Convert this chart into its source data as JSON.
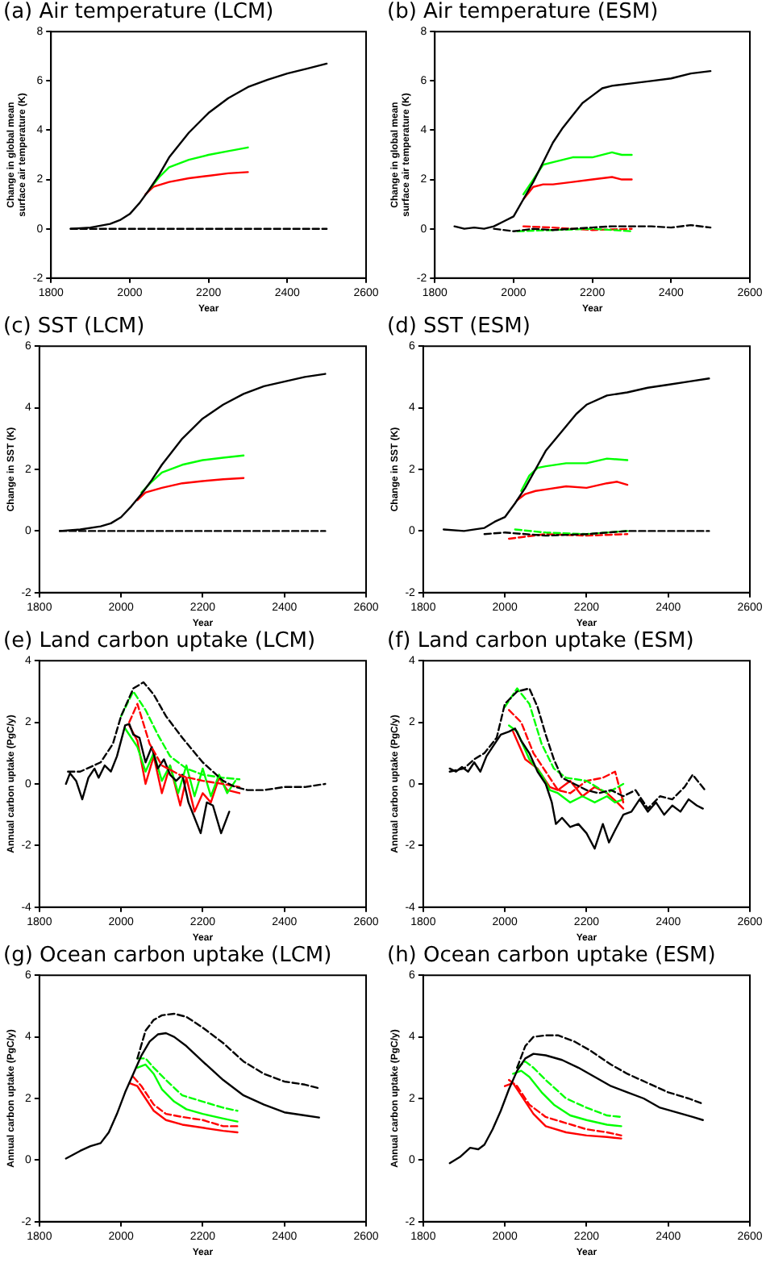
{
  "chart_data": [
    {
      "type": "line",
      "title": "(a) Air temperature (LCM)",
      "xlabel": "Year",
      "ylabel": "Change in global mean surface air temperature (K)",
      "xlim": [
        1800,
        2600
      ],
      "xticks": [
        1800,
        2000,
        2200,
        2400,
        2600
      ],
      "ylim": [
        -2,
        8
      ],
      "yticks": [
        -2,
        0,
        2,
        4,
        6,
        8
      ],
      "grid": false,
      "legend": false,
      "marker": "none",
      "series": [
        {
          "color": "#000000",
          "line_style": "dashed",
          "x": [
            1850,
            2500
          ],
          "values": [
            0,
            0
          ]
        },
        {
          "color": "#000000",
          "line_style": "solid",
          "x": [
            1850,
            1900,
            1950,
            1975,
            2000,
            2025,
            2050,
            2075,
            2100,
            2150,
            2200,
            2250,
            2300,
            2350,
            2400,
            2450,
            2500
          ],
          "values": [
            0,
            0.05,
            0.2,
            0.35,
            0.6,
            1.05,
            1.6,
            2.2,
            2.9,
            3.9,
            4.7,
            5.3,
            5.75,
            6.05,
            6.3,
            6.5,
            6.7
          ]
        },
        {
          "color": "#00ff00",
          "line_style": "solid",
          "x": [
            2050,
            2075,
            2100,
            2150,
            2200,
            2250,
            2300
          ],
          "values": [
            1.6,
            2.1,
            2.5,
            2.8,
            3.0,
            3.15,
            3.3
          ]
        },
        {
          "color": "#ff0000",
          "line_style": "solid",
          "x": [
            2040,
            2060,
            2100,
            2150,
            2200,
            2250,
            2300
          ],
          "values": [
            1.4,
            1.7,
            1.9,
            2.05,
            2.15,
            2.25,
            2.3
          ]
        }
      ]
    },
    {
      "type": "line",
      "title": "(b) Air temperature (ESM)",
      "xlabel": "Year",
      "ylabel": "Change in global mean surface air temperature (K)",
      "xlim": [
        1800,
        2600
      ],
      "xticks": [
        1800,
        2000,
        2200,
        2400,
        2600
      ],
      "ylim": [
        -2,
        8
      ],
      "yticks": [
        -2,
        0,
        2,
        4,
        6,
        8
      ],
      "grid": false,
      "legend": false,
      "marker": "none",
      "series": [
        {
          "color": "#000000",
          "line_style": "dashed",
          "x": [
            1950,
            2000,
            2050,
            2100,
            2150,
            2200,
            2250,
            2300,
            2350,
            2400,
            2450,
            2500
          ],
          "values": [
            0,
            -0.1,
            0,
            -0.05,
            0,
            0.05,
            0.1,
            0.1,
            0.1,
            0.05,
            0.15,
            0.05
          ]
        },
        {
          "color": "#00ff00",
          "line_style": "dashed",
          "x": [
            2010,
            2100,
            2200,
            2300
          ],
          "values": [
            -0.1,
            -0.05,
            0,
            -0.1
          ]
        },
        {
          "color": "#ff0000",
          "line_style": "dashed",
          "x": [
            2025,
            2100,
            2200,
            2300
          ],
          "values": [
            0.1,
            0.05,
            -0.05,
            0
          ]
        },
        {
          "color": "#000000",
          "line_style": "solid",
          "x": [
            1850,
            1875,
            1900,
            1925,
            1950,
            1975,
            2000,
            2025,
            2050,
            2075,
            2100,
            2125,
            2150,
            2175,
            2200,
            2225,
            2250,
            2300,
            2350,
            2400,
            2450,
            2500
          ],
          "values": [
            0.1,
            0,
            0.05,
            0,
            0.1,
            0.3,
            0.5,
            1.2,
            1.9,
            2.7,
            3.5,
            4.1,
            4.6,
            5.1,
            5.4,
            5.7,
            5.8,
            5.9,
            6.0,
            6.1,
            6.3,
            6.4
          ]
        },
        {
          "color": "#00ff00",
          "line_style": "solid",
          "x": [
            2025,
            2050,
            2075,
            2100,
            2125,
            2150,
            2200,
            2250,
            2275,
            2300
          ],
          "values": [
            1.4,
            2.0,
            2.6,
            2.7,
            2.8,
            2.9,
            2.9,
            3.1,
            3.0,
            3.0
          ]
        },
        {
          "color": "#ff0000",
          "line_style": "solid",
          "x": [
            2025,
            2050,
            2075,
            2100,
            2150,
            2200,
            2250,
            2275,
            2300
          ],
          "values": [
            1.2,
            1.7,
            1.8,
            1.8,
            1.9,
            2.0,
            2.1,
            2.0,
            2.0
          ]
        }
      ]
    },
    {
      "type": "line",
      "title": "(c) SST (LCM)",
      "xlabel": "Year",
      "ylabel": "Change in SST (K)",
      "xlim": [
        1800,
        2600
      ],
      "xticks": [
        1800,
        2000,
        2200,
        2400,
        2600
      ],
      "ylim": [
        -2,
        6
      ],
      "yticks": [
        -2,
        0,
        2,
        4,
        6
      ],
      "grid": false,
      "legend": false,
      "marker": "none",
      "series": [
        {
          "color": "#000000",
          "line_style": "dashed",
          "x": [
            1850,
            2500
          ],
          "values": [
            0,
            0
          ]
        },
        {
          "color": "#000000",
          "line_style": "solid",
          "x": [
            1850,
            1900,
            1950,
            1975,
            2000,
            2025,
            2050,
            2075,
            2100,
            2150,
            2200,
            2250,
            2300,
            2350,
            2400,
            2450,
            2500
          ],
          "values": [
            0,
            0.05,
            0.15,
            0.25,
            0.45,
            0.8,
            1.2,
            1.65,
            2.15,
            3.0,
            3.65,
            4.1,
            4.45,
            4.7,
            4.85,
            5.0,
            5.1
          ]
        },
        {
          "color": "#00ff00",
          "line_style": "solid",
          "x": [
            2050,
            2075,
            2100,
            2150,
            2200,
            2250,
            2300
          ],
          "values": [
            1.25,
            1.6,
            1.9,
            2.15,
            2.3,
            2.38,
            2.45
          ]
        },
        {
          "color": "#ff0000",
          "line_style": "solid",
          "x": [
            2040,
            2060,
            2100,
            2150,
            2200,
            2250,
            2300
          ],
          "values": [
            1.0,
            1.25,
            1.4,
            1.55,
            1.62,
            1.68,
            1.72
          ]
        }
      ]
    },
    {
      "type": "line",
      "title": "(d) SST (ESM)",
      "xlabel": "Year",
      "ylabel": "Change in SST (K)",
      "xlim": [
        1800,
        2600
      ],
      "xticks": [
        1800,
        2000,
        2200,
        2400,
        2600
      ],
      "ylim": [
        -2,
        6
      ],
      "yticks": [
        -2,
        0,
        2,
        4,
        6
      ],
      "grid": false,
      "legend": false,
      "marker": "none",
      "series": [
        {
          "color": "#000000",
          "line_style": "dashed",
          "x": [
            1950,
            2000,
            2100,
            2200,
            2300,
            2400,
            2500
          ],
          "values": [
            -0.1,
            -0.05,
            -0.15,
            -0.1,
            0,
            0,
            0
          ]
        },
        {
          "color": "#00ff00",
          "line_style": "dashed",
          "x": [
            2025,
            2100,
            2200,
            2300
          ],
          "values": [
            0.05,
            -0.05,
            -0.1,
            0
          ]
        },
        {
          "color": "#ff0000",
          "line_style": "dashed",
          "x": [
            2010,
            2100,
            2200,
            2300
          ],
          "values": [
            -0.25,
            -0.1,
            -0.15,
            -0.1
          ]
        },
        {
          "color": "#000000",
          "line_style": "solid",
          "x": [
            1850,
            1900,
            1950,
            1975,
            2000,
            2025,
            2050,
            2075,
            2100,
            2125,
            2150,
            2175,
            2200,
            2250,
            2300,
            2350,
            2400,
            2450,
            2500
          ],
          "values": [
            0.05,
            0,
            0.1,
            0.3,
            0.45,
            0.9,
            1.4,
            2.0,
            2.6,
            3.0,
            3.4,
            3.8,
            4.1,
            4.4,
            4.5,
            4.65,
            4.75,
            4.85,
            4.95
          ]
        },
        {
          "color": "#00ff00",
          "line_style": "solid",
          "x": [
            2040,
            2060,
            2080,
            2100,
            2150,
            2200,
            2250,
            2300
          ],
          "values": [
            1.3,
            1.8,
            2.05,
            2.1,
            2.2,
            2.2,
            2.35,
            2.3
          ]
        },
        {
          "color": "#ff0000",
          "line_style": "solid",
          "x": [
            2030,
            2050,
            2075,
            2100,
            2150,
            2200,
            2250,
            2275,
            2300
          ],
          "values": [
            1.0,
            1.2,
            1.3,
            1.35,
            1.45,
            1.4,
            1.55,
            1.6,
            1.5
          ]
        }
      ]
    },
    {
      "type": "line",
      "title": "(e) Land carbon uptake (LCM)",
      "xlabel": "Year",
      "ylabel": "Annual carbon uptake (PgC/y)",
      "xlim": [
        1800,
        2600
      ],
      "xticks": [
        1800,
        2000,
        2200,
        2400,
        2600
      ],
      "ylim": [
        -4,
        4
      ],
      "yticks": [
        -4,
        -2,
        0,
        2,
        4
      ],
      "grid": false,
      "legend": false,
      "marker": "none",
      "series": [
        {
          "color": "#000000",
          "line_style": "dashed",
          "x": [
            1870,
            1900,
            1950,
            1980,
            2000,
            2030,
            2055,
            2080,
            2110,
            2150,
            2200,
            2250,
            2280,
            2310,
            2350,
            2400,
            2450,
            2500
          ],
          "values": [
            0.4,
            0.4,
            0.7,
            1.3,
            2.2,
            3.1,
            3.3,
            2.9,
            2.2,
            1.5,
            0.7,
            0.1,
            -0.1,
            -0.2,
            -0.2,
            -0.1,
            -0.1,
            0
          ]
        },
        {
          "color": "#00ff00",
          "line_style": "dashed",
          "x": [
            2000,
            2030,
            2060,
            2090,
            2120,
            2160,
            2200,
            2250,
            2290
          ],
          "values": [
            2.2,
            3.0,
            2.4,
            1.6,
            0.9,
            0.5,
            0.3,
            0.2,
            0.15
          ]
        },
        {
          "color": "#ff0000",
          "line_style": "dashed",
          "x": [
            2020,
            2040,
            2070,
            2100,
            2150,
            2200,
            2250,
            2290
          ],
          "values": [
            2.0,
            2.6,
            1.3,
            0.6,
            0.25,
            0.1,
            0,
            -0.1
          ]
        },
        {
          "color": "#000000",
          "line_style": "solid",
          "x": [
            1865,
            1875,
            1890,
            1905,
            1920,
            1935,
            1945,
            1960,
            1975,
            1990,
            2010,
            2020,
            2030,
            2045,
            2060,
            2075,
            2090,
            2105,
            2120,
            2135,
            2150,
            2165,
            2180,
            2195,
            2210,
            2225,
            2245,
            2265
          ],
          "values": [
            0,
            0.35,
            0.1,
            -0.5,
            0.2,
            0.5,
            0.2,
            0.6,
            0.4,
            0.9,
            1.9,
            1.95,
            1.6,
            1.5,
            0.7,
            1.2,
            0.5,
            0.8,
            0.3,
            0.1,
            0.3,
            -0.6,
            -1.1,
            -1.6,
            -0.6,
            -0.7,
            -1.6,
            -0.9
          ]
        },
        {
          "color": "#00ff00",
          "line_style": "solid",
          "x": [
            2010,
            2040,
            2060,
            2080,
            2100,
            2120,
            2140,
            2160,
            2180,
            2200,
            2220,
            2240,
            2260,
            2280
          ],
          "values": [
            1.8,
            1.2,
            0.4,
            1.0,
            0.1,
            0.6,
            -0.3,
            0.6,
            -0.4,
            0.5,
            -0.4,
            0.3,
            -0.3,
            0.1
          ]
        },
        {
          "color": "#ff0000",
          "line_style": "solid",
          "x": [
            2020,
            2040,
            2060,
            2080,
            2100,
            2120,
            2145,
            2160,
            2180,
            2200,
            2220,
            2240,
            2260,
            2290
          ],
          "values": [
            1.9,
            1.4,
            0,
            0.9,
            -0.3,
            0.6,
            -0.7,
            0.2,
            -0.9,
            -0.3,
            -0.6,
            0.2,
            -0.2,
            -0.3
          ]
        }
      ]
    },
    {
      "type": "line",
      "title": "(f) Land carbon uptake (ESM)",
      "xlabel": "Year",
      "ylabel": "Annual carbon uptake (PgC/y)",
      "xlim": [
        1800,
        2600
      ],
      "xticks": [
        1800,
        2000,
        2200,
        2400,
        2600
      ],
      "ylim": [
        -4,
        4
      ],
      "yticks": [
        -4,
        -2,
        0,
        2,
        4
      ],
      "grid": false,
      "legend": false,
      "marker": "none",
      "series": [
        {
          "color": "#000000",
          "line_style": "dashed",
          "x": [
            1865,
            1900,
            1925,
            1950,
            1980,
            2000,
            2030,
            2060,
            2080,
            2100,
            2120,
            2140,
            2170,
            2200,
            2230,
            2260,
            2290,
            2320,
            2350,
            2380,
            2410,
            2440,
            2460,
            2490
          ],
          "values": [
            0.4,
            0.5,
            0.8,
            1.0,
            1.5,
            2.6,
            3.0,
            3.1,
            2.5,
            1.6,
            0.8,
            0.2,
            0,
            -0.2,
            -0.3,
            -0.2,
            -0.4,
            -0.2,
            -0.8,
            -0.4,
            -0.5,
            -0.1,
            0.3,
            -0.2
          ]
        },
        {
          "color": "#00ff00",
          "line_style": "dashed",
          "x": [
            2000,
            2030,
            2060,
            2090,
            2120,
            2150,
            2200,
            2250,
            2290
          ],
          "values": [
            2.5,
            3.1,
            2.6,
            1.3,
            0.5,
            0.2,
            0.1,
            -0.3,
            0
          ]
        },
        {
          "color": "#ff0000",
          "line_style": "dashed",
          "x": [
            2010,
            2040,
            2070,
            2100,
            2130,
            2160,
            2200,
            2240,
            2270,
            2290
          ],
          "values": [
            2.4,
            2.0,
            1.0,
            0.4,
            -0.2,
            -0.3,
            0.1,
            0.2,
            0.4,
            -0.6
          ]
        },
        {
          "color": "#000000",
          "line_style": "solid",
          "x": [
            1865,
            1880,
            1895,
            1910,
            1925,
            1940,
            1955,
            1970,
            1990,
            2010,
            2025,
            2040,
            2060,
            2080,
            2100,
            2115,
            2125,
            2140,
            2160,
            2180,
            2200,
            2220,
            2240,
            2255,
            2270,
            2290,
            2310,
            2330,
            2350,
            2370,
            2390,
            2410,
            2430,
            2450,
            2470,
            2485
          ],
          "values": [
            0.5,
            0.4,
            0.55,
            0.4,
            0.7,
            0.4,
            0.9,
            1.2,
            1.6,
            1.7,
            1.8,
            1.4,
            1.0,
            0.4,
            0,
            -0.6,
            -1.3,
            -1.1,
            -1.4,
            -1.3,
            -1.6,
            -2.1,
            -1.3,
            -1.9,
            -1.5,
            -1.0,
            -0.9,
            -0.5,
            -0.9,
            -0.6,
            -1.0,
            -0.7,
            -0.9,
            -0.5,
            -0.7,
            -0.8
          ]
        },
        {
          "color": "#00ff00",
          "line_style": "solid",
          "x": [
            2010,
            2030,
            2060,
            2090,
            2110,
            2130,
            2160,
            2190,
            2220,
            2250,
            2270,
            2290
          ],
          "values": [
            1.9,
            1.7,
            0.8,
            0.3,
            -0.2,
            -0.3,
            -0.6,
            -0.4,
            -0.6,
            -0.4,
            -0.6,
            -0.5
          ]
        },
        {
          "color": "#ff0000",
          "line_style": "solid",
          "x": [
            2020,
            2050,
            2080,
            2110,
            2130,
            2160,
            2190,
            2220,
            2250,
            2275,
            2290
          ],
          "values": [
            1.7,
            0.8,
            0.5,
            -0.1,
            -0.2,
            0.1,
            -0.4,
            -0.1,
            -0.3,
            -0.6,
            -0.8
          ]
        }
      ]
    },
    {
      "type": "line",
      "title": "(g) Ocean carbon uptake (LCM)",
      "xlabel": "Year",
      "ylabel": "Annual carbon uptake (PgC/y)",
      "xlim": [
        1800,
        2600
      ],
      "xticks": [
        1800,
        2000,
        2200,
        2400,
        2600
      ],
      "ylim": [
        -2,
        6
      ],
      "yticks": [
        -2,
        0,
        2,
        4,
        6
      ],
      "grid": false,
      "legend": false,
      "marker": "none",
      "series": [
        {
          "color": "#000000",
          "line_style": "dashed",
          "x": [
            2040,
            2060,
            2080,
            2100,
            2130,
            2160,
            2200,
            2250,
            2300,
            2350,
            2400,
            2450,
            2485
          ],
          "values": [
            3.3,
            4.2,
            4.55,
            4.7,
            4.75,
            4.65,
            4.3,
            3.8,
            3.2,
            2.8,
            2.55,
            2.45,
            2.33
          ]
        },
        {
          "color": "#000000",
          "line_style": "solid",
          "x": [
            1865,
            1900,
            1925,
            1950,
            1970,
            1990,
            2010,
            2030,
            2050,
            2070,
            2090,
            2110,
            2130,
            2160,
            2200,
            2250,
            2300,
            2350,
            2400,
            2450,
            2485
          ],
          "values": [
            0.05,
            0.3,
            0.45,
            0.55,
            0.9,
            1.5,
            2.2,
            2.8,
            3.4,
            3.85,
            4.08,
            4.12,
            4.0,
            3.7,
            3.2,
            2.6,
            2.1,
            1.8,
            1.55,
            1.45,
            1.38
          ]
        },
        {
          "color": "#00ff00",
          "line_style": "dashed",
          "x": [
            2040,
            2060,
            2080,
            2110,
            2150,
            2200,
            2250,
            2285
          ],
          "values": [
            3.3,
            3.3,
            3.0,
            2.6,
            2.1,
            1.9,
            1.7,
            1.6
          ]
        },
        {
          "color": "#00ff00",
          "line_style": "solid",
          "x": [
            2040,
            2060,
            2080,
            2100,
            2130,
            2160,
            2200,
            2250,
            2285
          ],
          "values": [
            3.0,
            3.1,
            2.8,
            2.3,
            1.9,
            1.65,
            1.5,
            1.35,
            1.25
          ]
        },
        {
          "color": "#ff0000",
          "line_style": "dashed",
          "x": [
            2030,
            2050,
            2080,
            2110,
            2150,
            2200,
            2250,
            2285
          ],
          "values": [
            2.7,
            2.4,
            1.8,
            1.5,
            1.4,
            1.3,
            1.1,
            1.1
          ]
        },
        {
          "color": "#ff0000",
          "line_style": "solid",
          "x": [
            2020,
            2040,
            2060,
            2080,
            2110,
            2150,
            2200,
            2250,
            2285
          ],
          "values": [
            2.5,
            2.4,
            2.0,
            1.6,
            1.3,
            1.15,
            1.05,
            0.95,
            0.9
          ]
        }
      ]
    },
    {
      "type": "line",
      "title": "(h) Ocean carbon uptake (ESM)",
      "xlabel": "Year",
      "ylabel": "Annual carbon uptake (PgC/y)",
      "xlim": [
        1800,
        2600
      ],
      "xticks": [
        1800,
        2000,
        2200,
        2400,
        2600
      ],
      "ylim": [
        -2,
        6
      ],
      "yticks": [
        -2,
        0,
        2,
        4,
        6
      ],
      "grid": false,
      "legend": false,
      "marker": "none",
      "series": [
        {
          "color": "#000000",
          "line_style": "dashed",
          "x": [
            2030,
            2050,
            2070,
            2100,
            2130,
            2170,
            2210,
            2260,
            2300,
            2350,
            2400,
            2450,
            2480
          ],
          "values": [
            3.0,
            3.7,
            4.0,
            4.05,
            4.05,
            3.85,
            3.55,
            3.1,
            2.8,
            2.5,
            2.2,
            2.0,
            1.85
          ]
        },
        {
          "color": "#000000",
          "line_style": "solid",
          "x": [
            1865,
            1890,
            1915,
            1935,
            1950,
            1970,
            1990,
            2010,
            2030,
            2050,
            2070,
            2100,
            2140,
            2180,
            2220,
            2260,
            2300,
            2340,
            2380,
            2420,
            2460,
            2485
          ],
          "values": [
            -0.1,
            0.1,
            0.4,
            0.35,
            0.5,
            1.0,
            1.6,
            2.3,
            2.9,
            3.3,
            3.45,
            3.4,
            3.25,
            3.0,
            2.7,
            2.4,
            2.2,
            2.0,
            1.7,
            1.55,
            1.4,
            1.3
          ]
        },
        {
          "color": "#00ff00",
          "line_style": "dashed",
          "x": [
            2030,
            2050,
            2070,
            2100,
            2150,
            2200,
            2250,
            2285
          ],
          "values": [
            3.0,
            3.2,
            3.0,
            2.6,
            2.0,
            1.7,
            1.45,
            1.4
          ]
        },
        {
          "color": "#00ff00",
          "line_style": "solid",
          "x": [
            2020,
            2040,
            2060,
            2090,
            2120,
            2160,
            2200,
            2250,
            2285
          ],
          "values": [
            2.8,
            2.9,
            2.7,
            2.2,
            1.8,
            1.45,
            1.3,
            1.15,
            1.1
          ]
        },
        {
          "color": "#ff0000",
          "line_style": "dashed",
          "x": [
            2010,
            2030,
            2060,
            2100,
            2150,
            2200,
            2250,
            2285
          ],
          "values": [
            2.6,
            2.4,
            1.8,
            1.4,
            1.2,
            1.0,
            0.9,
            0.8
          ]
        },
        {
          "color": "#ff0000",
          "line_style": "solid",
          "x": [
            2000,
            2020,
            2040,
            2070,
            2100,
            2150,
            2200,
            2250,
            2285
          ],
          "values": [
            2.4,
            2.5,
            2.1,
            1.5,
            1.1,
            0.9,
            0.8,
            0.75,
            0.7
          ]
        }
      ]
    }
  ]
}
